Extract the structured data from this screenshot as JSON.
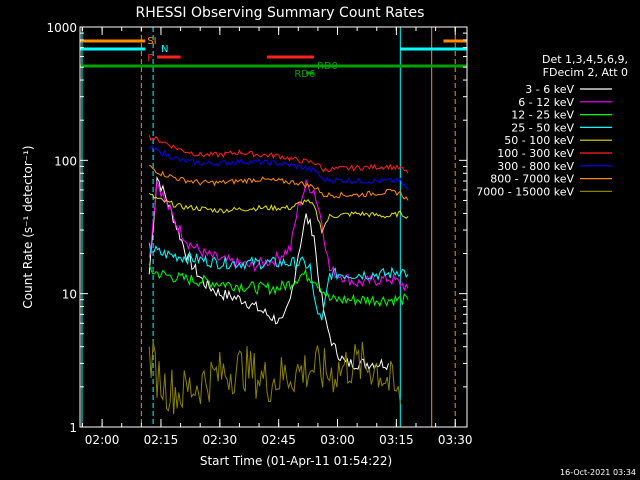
{
  "chart_data": {
    "type": "line",
    "title": "RHESSI Observing Summary Count Rates",
    "xlabel": "Start Time (01-Apr-11 01:54:22)",
    "ylabel": "Count Rate (s⁻¹ detector⁻¹)",
    "y_scale": "log",
    "ylim": [
      1,
      1000
    ],
    "xlim": [
      "01:54:22",
      "03:33:00"
    ],
    "x_ticks": [
      "02:00",
      "02:15",
      "02:30",
      "02:45",
      "03:00",
      "03:15",
      "03:30"
    ],
    "y_ticks": [
      "1",
      "10",
      "100",
      "1000"
    ],
    "timestamp": "16-Oct-2021 03:34",
    "legend_header": [
      "Det 1,3,4,5,6,9,",
      "FDecim 2, Att 0"
    ],
    "legend_position": "right",
    "flags": [
      {
        "label": "SI",
        "color": "#ff8c00"
      },
      {
        "label": "N",
        "color": "#00ffff"
      },
      {
        "label": "F",
        "color": "#ff2020"
      },
      {
        "label": "RD0",
        "color": "#00a000"
      },
      {
        "label": "RD6",
        "color": "#00a000"
      }
    ],
    "series": [
      {
        "name": "3 - 6 keV",
        "color": "#ffffff",
        "x": [
          "02:12",
          "02:14",
          "02:16",
          "02:19",
          "02:22",
          "02:26",
          "02:30",
          "02:36",
          "02:42",
          "02:46",
          "02:48",
          "02:50",
          "02:52",
          "02:54",
          "02:55",
          "02:57",
          "02:59",
          "03:02",
          "03:08",
          "03:13"
        ],
        "values": [
          14,
          75,
          55,
          32,
          18,
          12,
          10,
          9,
          7,
          6,
          9,
          20,
          38,
          28,
          14,
          6,
          4,
          3,
          3,
          3
        ]
      },
      {
        "name": "6 - 12 keV",
        "color": "#ff00ff",
        "x": [
          "02:12",
          "02:14",
          "02:16",
          "02:19",
          "02:22",
          "02:26",
          "02:30",
          "02:38",
          "02:44",
          "02:48",
          "02:50",
          "02:52",
          "02:54",
          "02:56",
          "02:58",
          "03:05",
          "03:13",
          "03:16",
          "03:18"
        ],
        "values": [
          18,
          70,
          50,
          33,
          24,
          20,
          18,
          16,
          18,
          22,
          45,
          65,
          60,
          35,
          15,
          12,
          13,
          12,
          11
        ]
      },
      {
        "name": "12 - 25 keV",
        "color": "#00ff00",
        "x": [
          "02:12",
          "02:15",
          "02:20",
          "02:30",
          "02:40",
          "02:45",
          "02:48",
          "02:51",
          "02:54",
          "02:56",
          "02:58",
          "03:05",
          "03:13",
          "03:16",
          "03:18"
        ],
        "values": [
          15,
          14,
          13,
          12,
          11,
          11,
          12,
          14,
          13,
          11,
          9,
          9,
          9,
          9,
          9
        ]
      },
      {
        "name": "25 - 50 keV",
        "color": "#00ffff",
        "x": [
          "02:12",
          "02:15",
          "02:20",
          "02:30",
          "02:40",
          "02:48",
          "02:51",
          "02:53",
          "02:54",
          "02:56",
          "02:58",
          "03:05",
          "03:13",
          "03:16",
          "03:18"
        ],
        "values": [
          22,
          20,
          19,
          17,
          17,
          17,
          17,
          16,
          9,
          6,
          14,
          14,
          14,
          15,
          14
        ]
      },
      {
        "name": "50 - 100 keV",
        "color": "#e0e000",
        "x": [
          "02:12",
          "02:15",
          "02:20",
          "02:30",
          "02:40",
          "02:48",
          "02:52",
          "02:54",
          "02:56",
          "02:58",
          "03:05",
          "03:13",
          "03:16",
          "03:18"
        ],
        "values": [
          55,
          50,
          45,
          42,
          44,
          44,
          50,
          45,
          30,
          38,
          40,
          38,
          40,
          38
        ]
      },
      {
        "name": "100 - 300 keV",
        "color": "#ff2020",
        "x": [
          "02:12",
          "02:15",
          "02:20",
          "02:25",
          "02:30",
          "02:35",
          "02:40",
          "02:45",
          "02:50",
          "02:55",
          "02:56",
          "03:05",
          "03:13",
          "03:16",
          "03:18"
        ],
        "values": [
          150,
          140,
          120,
          110,
          110,
          115,
          110,
          108,
          100,
          95,
          85,
          88,
          90,
          87,
          80
        ]
      },
      {
        "name": "300 - 800 keV",
        "color": "#0000ff",
        "x": [
          "02:12",
          "02:15",
          "02:20",
          "02:25",
          "02:30",
          "02:35",
          "02:40",
          "02:45",
          "02:50",
          "02:55",
          "02:56",
          "03:05",
          "03:13",
          "03:16",
          "03:18"
        ],
        "values": [
          125,
          115,
          100,
          95,
          95,
          98,
          97,
          95,
          90,
          82,
          72,
          70,
          70,
          70,
          60
        ]
      },
      {
        "name": "800 - 7000 keV",
        "color": "#ff8c00",
        "x": [
          "02:12",
          "02:15",
          "02:20",
          "02:25",
          "02:30",
          "02:35",
          "02:40",
          "02:45",
          "02:50",
          "02:55",
          "02:56",
          "03:05",
          "03:13",
          "03:16",
          "03:18"
        ],
        "values": [
          90,
          80,
          72,
          68,
          68,
          70,
          72,
          70,
          68,
          62,
          55,
          55,
          58,
          57,
          50
        ]
      },
      {
        "name": "7000 - 15000 keV",
        "color": "#8b8000",
        "x": [
          "02:12",
          "02:14",
          "02:16",
          "02:20",
          "02:26",
          "02:30",
          "02:36",
          "02:42",
          "02:48",
          "02:54",
          "02:58",
          "03:04",
          "03:10",
          "03:14",
          "03:16"
        ],
        "values": [
          3.5,
          2.5,
          2,
          1.8,
          2.2,
          2.5,
          2.8,
          2.2,
          2.5,
          2.8,
          2.5,
          3,
          2.8,
          2,
          1.5
        ]
      }
    ]
  }
}
